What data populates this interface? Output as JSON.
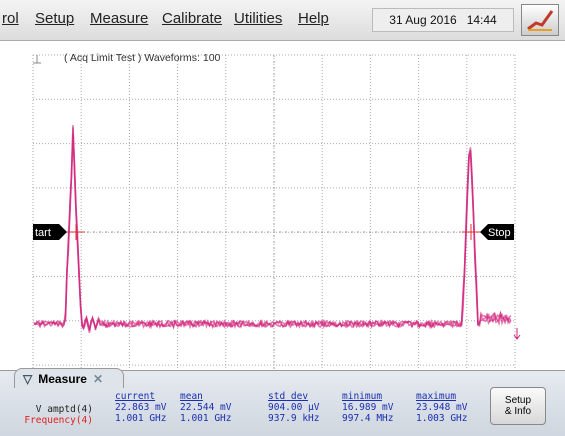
{
  "menu": [
    "rol",
    "Setup",
    "Measure",
    "Calibrate",
    "Utilities",
    "Help"
  ],
  "date": "31 Aug 2016",
  "time": "14:44",
  "display": {
    "status": "( Acq Limit Test ) Waveforms: 100",
    "start_marker": "tart",
    "stop_marker": "Stop"
  },
  "measure": {
    "tab": "Measure",
    "columns": [
      "current",
      "mean",
      "std dev",
      "minimum",
      "maximum"
    ],
    "rows": [
      {
        "label": "V amptd(4)",
        "values": [
          "22.863 mV",
          "22.544 mV",
          "904.00 µV",
          "16.989 mV",
          "23.948 mV"
        ]
      },
      {
        "label": "Frequency(4)",
        "values": [
          "1.001 GHz",
          "1.001 GHz",
          "937.9 kHz",
          "997.4 MHz",
          "1.003 GHz"
        ]
      }
    ],
    "button": [
      "Setup",
      "& Info"
    ]
  }
}
